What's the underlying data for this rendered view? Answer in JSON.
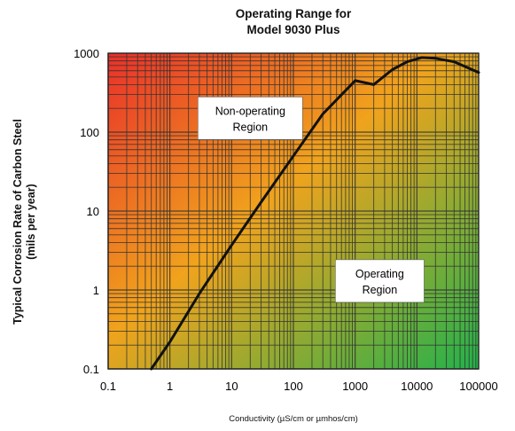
{
  "chart_data": {
    "type": "line",
    "title_lines": [
      "Operating Range for",
      "Model 9030 Plus"
    ],
    "xlabel": "Conductivity (µS/cm or µmhos/cm)",
    "ylabel_lines": [
      "Typical Corrosion Rate of Carbon Steel",
      "(mils per year)"
    ],
    "x_scale": "log",
    "y_scale": "log",
    "xlim": [
      0.1,
      100000
    ],
    "ylim": [
      0.1,
      1000
    ],
    "x_ticks": [
      0.1,
      1,
      10,
      100,
      1000,
      10000,
      100000
    ],
    "x_tick_labels": [
      "0.1",
      "1",
      "10",
      "100",
      "1000",
      "10000",
      "100000"
    ],
    "y_ticks": [
      0.1,
      1,
      10,
      100,
      1000
    ],
    "y_tick_labels": [
      "0.1",
      "1",
      "10",
      "100",
      "1000"
    ],
    "grid": true,
    "series": [
      {
        "x": [
          0.5,
          1,
          3,
          10,
          30,
          100,
          300,
          1000,
          2000,
          4000,
          7000,
          12000,
          20000,
          40000,
          100000
        ],
        "y": [
          0.1,
          0.22,
          0.9,
          3.7,
          13,
          50,
          170,
          450,
          400,
          620,
          780,
          880,
          860,
          780,
          570
        ]
      }
    ],
    "annotations": [
      {
        "text_lines": [
          "Non-operating",
          "Region"
        ],
        "x": 20,
        "y": 150
      },
      {
        "text_lines": [
          "Operating",
          "Region"
        ],
        "x": 2500,
        "y": 1.3
      }
    ],
    "background": "red-to-green gradient (red top-left, green bottom-right)",
    "colors": {
      "hot": "#e9302a",
      "mid": "#f0a31c",
      "cool": "#22b24b",
      "line": "#111111",
      "grid": "#333333"
    }
  }
}
